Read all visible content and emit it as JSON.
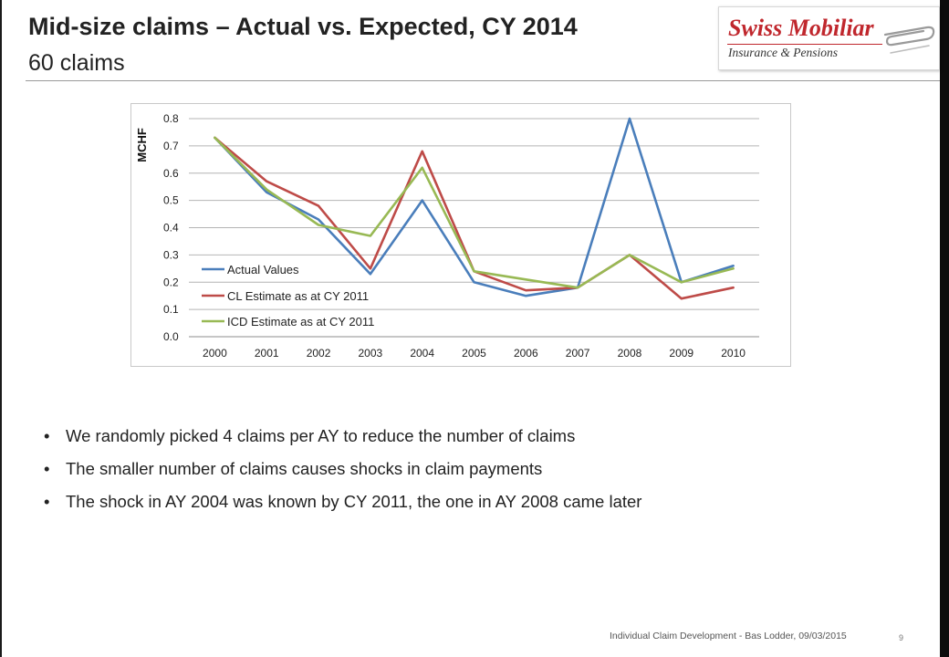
{
  "slide": {
    "title": "Mid-size claims – Actual vs. Expected, CY 2014",
    "subtitle": "60 claims",
    "bullets": [
      "We randomly picked 4 claims per AY to reduce the number of claims",
      "The smaller number of claims causes shocks in claim payments",
      "The shock in AY 2004 was known by CY 2011, the one in AY 2008 came later"
    ],
    "bullet_char": "•",
    "footer": "Individual Claim Development - Bas Lodder, 09/03/2015",
    "page_number": "9"
  },
  "logo": {
    "brand": "Swiss Mobiliar",
    "tagline": "Insurance & Pensions",
    "color": "#c0272d"
  },
  "chart_data": {
    "type": "line",
    "title": "",
    "xlabel": "",
    "ylabel": "MCHF",
    "categories": [
      "2000",
      "2001",
      "2002",
      "2003",
      "2004",
      "2005",
      "2006",
      "2007",
      "2008",
      "2009",
      "2010"
    ],
    "ylim": [
      0,
      0.8
    ],
    "yticks": [
      "0.0",
      "0.1",
      "0.2",
      "0.3",
      "0.4",
      "0.5",
      "0.6",
      "0.7",
      "0.8"
    ],
    "grid": true,
    "legend_position": "bottom-left",
    "series": [
      {
        "name": "Actual Values",
        "color": "#4a7ebb",
        "values": [
          0.73,
          0.53,
          0.43,
          0.23,
          0.5,
          0.2,
          0.15,
          0.18,
          0.8,
          0.2,
          0.26
        ]
      },
      {
        "name": "CL Estimate as at CY 2011",
        "color": "#be4b48",
        "values": [
          0.73,
          0.57,
          0.48,
          0.25,
          0.68,
          0.24,
          0.17,
          0.18,
          0.3,
          0.14,
          0.18
        ]
      },
      {
        "name": "ICD Estimate as at CY 2011",
        "color": "#98b954",
        "values": [
          0.73,
          0.54,
          0.41,
          0.37,
          0.62,
          0.24,
          0.21,
          0.18,
          0.3,
          0.2,
          0.25
        ]
      }
    ]
  }
}
